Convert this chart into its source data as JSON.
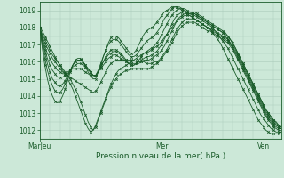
{
  "title": "",
  "xlabel": "Pression niveau de la mer( hPa )",
  "ylabel": "",
  "xlim": [
    0,
    95
  ],
  "ylim": [
    1011.5,
    1019.5
  ],
  "yticks": [
    1012,
    1013,
    1014,
    1015,
    1016,
    1017,
    1018,
    1019
  ],
  "xtick_positions": [
    0,
    48,
    88
  ],
  "xtick_labels": [
    "MarJeu",
    "Mer",
    "Ven"
  ],
  "bg_color": "#cce8d8",
  "grid_color": "#aacaba",
  "line_color": "#1a5c2a",
  "series": [
    [
      1018.0,
      1017.8,
      1017.5,
      1017.2,
      1016.9,
      1016.6,
      1016.3,
      1016.0,
      1015.8,
      1015.5,
      1015.3,
      1015.0,
      1014.7,
      1014.4,
      1014.0,
      1013.6,
      1013.2,
      1012.8,
      1012.4,
      1012.1,
      1011.9,
      1012.0,
      1012.3,
      1012.7,
      1013.1,
      1013.5,
      1013.9,
      1014.3,
      1014.7,
      1015.0,
      1015.3,
      1015.5,
      1015.6,
      1015.7,
      1015.8,
      1015.9,
      1016.0,
      1016.1,
      1016.2,
      1016.3,
      1016.4,
      1016.5,
      1016.5,
      1016.6,
      1016.7,
      1016.8,
      1016.9,
      1017.0,
      1017.2,
      1017.4,
      1017.6,
      1017.8,
      1018.0,
      1018.2,
      1018.4,
      1018.5,
      1018.6,
      1018.7,
      1018.7,
      1018.7,
      1018.6,
      1018.5,
      1018.4,
      1018.3,
      1018.2,
      1018.1,
      1018.0,
      1017.9,
      1017.8,
      1017.7,
      1017.6,
      1017.5,
      1017.4,
      1017.3,
      1017.2,
      1017.0,
      1016.8,
      1016.6,
      1016.3,
      1016.0,
      1015.7,
      1015.4,
      1015.1,
      1014.8,
      1014.5,
      1014.2,
      1013.9,
      1013.6,
      1013.3,
      1013.0,
      1012.8,
      1012.6,
      1012.4,
      1012.3,
      1012.2,
      1012.1
    ],
    [
      1018.0,
      1017.6,
      1017.3,
      1017.0,
      1016.7,
      1016.4,
      1016.2,
      1016.0,
      1015.8,
      1015.6,
      1015.4,
      1015.2,
      1015.0,
      1014.7,
      1014.4,
      1014.1,
      1013.7,
      1013.3,
      1012.9,
      1012.5,
      1012.2,
      1012.0,
      1012.2,
      1012.6,
      1013.0,
      1013.4,
      1013.8,
      1014.2,
      1014.5,
      1014.8,
      1015.0,
      1015.2,
      1015.3,
      1015.4,
      1015.5,
      1015.5,
      1015.6,
      1015.6,
      1015.6,
      1015.6,
      1015.6,
      1015.6,
      1015.6,
      1015.6,
      1015.7,
      1015.8,
      1015.9,
      1016.0,
      1016.2,
      1016.4,
      1016.6,
      1016.8,
      1017.1,
      1017.4,
      1017.7,
      1017.9,
      1018.1,
      1018.2,
      1018.3,
      1018.3,
      1018.3,
      1018.3,
      1018.2,
      1018.1,
      1018.0,
      1017.9,
      1017.8,
      1017.8,
      1017.7,
      1017.6,
      1017.5,
      1017.4,
      1017.3,
      1017.2,
      1017.1,
      1016.9,
      1016.7,
      1016.4,
      1016.1,
      1015.8,
      1015.5,
      1015.2,
      1014.9,
      1014.6,
      1014.3,
      1014.0,
      1013.7,
      1013.4,
      1013.1,
      1012.8,
      1012.6,
      1012.4,
      1012.2,
      1012.1,
      1012.0,
      1012.0
    ],
    [
      1018.0,
      1017.5,
      1017.1,
      1016.8,
      1016.5,
      1016.2,
      1016.0,
      1015.8,
      1015.6,
      1015.4,
      1015.3,
      1015.2,
      1015.1,
      1015.0,
      1014.9,
      1014.8,
      1014.7,
      1014.6,
      1014.5,
      1014.4,
      1014.3,
      1014.2,
      1014.3,
      1014.5,
      1014.8,
      1015.1,
      1015.4,
      1015.7,
      1015.9,
      1016.0,
      1016.1,
      1016.1,
      1016.1,
      1016.1,
      1016.1,
      1016.1,
      1016.1,
      1016.1,
      1016.0,
      1016.0,
      1016.0,
      1016.0,
      1015.9,
      1015.9,
      1015.9,
      1016.0,
      1016.0,
      1016.1,
      1016.3,
      1016.5,
      1016.7,
      1017.0,
      1017.3,
      1017.6,
      1017.9,
      1018.1,
      1018.3,
      1018.4,
      1018.5,
      1018.5,
      1018.5,
      1018.5,
      1018.4,
      1018.3,
      1018.2,
      1018.1,
      1018.0,
      1017.9,
      1017.9,
      1017.8,
      1017.7,
      1017.6,
      1017.5,
      1017.4,
      1017.3,
      1017.1,
      1016.9,
      1016.7,
      1016.4,
      1016.1,
      1015.8,
      1015.5,
      1015.2,
      1014.9,
      1014.6,
      1014.3,
      1014.0,
      1013.7,
      1013.4,
      1013.1,
      1012.9,
      1012.7,
      1012.5,
      1012.3,
      1012.2,
      1012.1
    ],
    [
      1018.0,
      1017.4,
      1016.9,
      1016.5,
      1016.2,
      1015.9,
      1015.7,
      1015.5,
      1015.4,
      1015.3,
      1015.3,
      1015.4,
      1015.5,
      1015.6,
      1015.6,
      1015.6,
      1015.6,
      1015.5,
      1015.4,
      1015.3,
      1015.2,
      1015.1,
      1015.2,
      1015.4,
      1015.6,
      1015.8,
      1016.0,
      1016.2,
      1016.3,
      1016.4,
      1016.4,
      1016.3,
      1016.2,
      1016.1,
      1016.0,
      1015.9,
      1015.9,
      1015.9,
      1015.9,
      1015.9,
      1016.0,
      1016.1,
      1016.1,
      1016.1,
      1016.2,
      1016.3,
      1016.4,
      1016.5,
      1016.7,
      1016.9,
      1017.2,
      1017.5,
      1017.8,
      1018.1,
      1018.4,
      1018.6,
      1018.7,
      1018.8,
      1018.8,
      1018.8,
      1018.8,
      1018.8,
      1018.7,
      1018.6,
      1018.5,
      1018.4,
      1018.3,
      1018.2,
      1018.1,
      1018.0,
      1017.9,
      1017.8,
      1017.7,
      1017.6,
      1017.5,
      1017.3,
      1017.0,
      1016.8,
      1016.5,
      1016.2,
      1015.9,
      1015.6,
      1015.3,
      1015.0,
      1014.7,
      1014.4,
      1014.1,
      1013.8,
      1013.5,
      1013.2,
      1013.0,
      1012.8,
      1012.6,
      1012.5,
      1012.3,
      1012.2
    ],
    [
      1018.0,
      1017.3,
      1016.7,
      1016.2,
      1015.8,
      1015.5,
      1015.3,
      1015.1,
      1015.1,
      1015.1,
      1015.2,
      1015.3,
      1015.5,
      1015.7,
      1015.8,
      1015.9,
      1015.9,
      1015.8,
      1015.7,
      1015.5,
      1015.4,
      1015.2,
      1015.2,
      1015.4,
      1015.7,
      1016.0,
      1016.2,
      1016.4,
      1016.5,
      1016.6,
      1016.6,
      1016.5,
      1016.4,
      1016.2,
      1016.0,
      1015.9,
      1015.8,
      1015.8,
      1015.9,
      1016.0,
      1016.1,
      1016.2,
      1016.3,
      1016.3,
      1016.4,
      1016.5,
      1016.6,
      1016.8,
      1017.0,
      1017.3,
      1017.6,
      1017.9,
      1018.2,
      1018.5,
      1018.7,
      1018.8,
      1018.9,
      1018.9,
      1018.9,
      1018.9,
      1018.9,
      1018.9,
      1018.8,
      1018.7,
      1018.6,
      1018.5,
      1018.4,
      1018.3,
      1018.2,
      1018.1,
      1018.0,
      1017.9,
      1017.8,
      1017.7,
      1017.5,
      1017.3,
      1017.1,
      1016.8,
      1016.5,
      1016.2,
      1015.9,
      1015.6,
      1015.3,
      1015.0,
      1014.7,
      1014.4,
      1014.1,
      1013.8,
      1013.5,
      1013.2,
      1013.0,
      1012.8,
      1012.6,
      1012.4,
      1012.3,
      1012.2
    ],
    [
      1018.0,
      1017.2,
      1016.5,
      1015.9,
      1015.4,
      1015.0,
      1014.8,
      1014.6,
      1014.6,
      1014.7,
      1014.9,
      1015.2,
      1015.5,
      1015.8,
      1016.0,
      1016.1,
      1016.1,
      1016.0,
      1015.8,
      1015.6,
      1015.4,
      1015.2,
      1015.2,
      1015.4,
      1015.7,
      1016.0,
      1016.3,
      1016.5,
      1016.7,
      1016.7,
      1016.7,
      1016.6,
      1016.5,
      1016.3,
      1016.1,
      1015.9,
      1015.8,
      1015.8,
      1015.9,
      1016.1,
      1016.3,
      1016.5,
      1016.6,
      1016.7,
      1016.8,
      1016.9,
      1017.1,
      1017.3,
      1017.6,
      1017.9,
      1018.2,
      1018.5,
      1018.7,
      1018.9,
      1019.0,
      1019.1,
      1019.1,
      1019.1,
      1019.0,
      1018.9,
      1018.8,
      1018.8,
      1018.7,
      1018.6,
      1018.5,
      1018.4,
      1018.3,
      1018.2,
      1018.1,
      1018.0,
      1017.9,
      1017.8,
      1017.7,
      1017.5,
      1017.3,
      1017.1,
      1016.8,
      1016.5,
      1016.2,
      1015.9,
      1015.6,
      1015.3,
      1015.0,
      1014.7,
      1014.4,
      1014.1,
      1013.8,
      1013.5,
      1013.2,
      1012.9,
      1012.7,
      1012.5,
      1012.3,
      1012.2,
      1012.1,
      1012.1
    ],
    [
      1018.0,
      1017.0,
      1016.2,
      1015.5,
      1015.0,
      1014.6,
      1014.3,
      1014.2,
      1014.2,
      1014.4,
      1014.7,
      1015.1,
      1015.5,
      1015.8,
      1016.0,
      1016.1,
      1016.1,
      1016.0,
      1015.8,
      1015.6,
      1015.4,
      1015.2,
      1015.2,
      1015.5,
      1015.9,
      1016.3,
      1016.7,
      1017.0,
      1017.2,
      1017.3,
      1017.3,
      1017.2,
      1017.0,
      1016.8,
      1016.6,
      1016.4,
      1016.3,
      1016.3,
      1016.4,
      1016.6,
      1016.8,
      1017.0,
      1017.2,
      1017.3,
      1017.4,
      1017.5,
      1017.7,
      1017.9,
      1018.2,
      1018.5,
      1018.7,
      1018.9,
      1019.1,
      1019.2,
      1019.2,
      1019.2,
      1019.1,
      1019.0,
      1018.9,
      1018.8,
      1018.7,
      1018.7,
      1018.6,
      1018.5,
      1018.4,
      1018.3,
      1018.2,
      1018.1,
      1018.0,
      1017.8,
      1017.6,
      1017.4,
      1017.2,
      1017.0,
      1016.8,
      1016.5,
      1016.2,
      1015.9,
      1015.6,
      1015.3,
      1015.0,
      1014.7,
      1014.4,
      1014.1,
      1013.8,
      1013.5,
      1013.2,
      1012.9,
      1012.7,
      1012.5,
      1012.3,
      1012.1,
      1012.0,
      1011.9,
      1011.9,
      1011.9
    ],
    [
      1018.0,
      1016.8,
      1015.8,
      1015.0,
      1014.4,
      1014.0,
      1013.7,
      1013.6,
      1013.7,
      1014.0,
      1014.4,
      1014.9,
      1015.4,
      1015.8,
      1016.1,
      1016.2,
      1016.2,
      1016.0,
      1015.7,
      1015.4,
      1015.2,
      1015.0,
      1015.0,
      1015.4,
      1015.8,
      1016.3,
      1016.7,
      1017.1,
      1017.4,
      1017.5,
      1017.5,
      1017.4,
      1017.2,
      1017.0,
      1016.8,
      1016.6,
      1016.5,
      1016.5,
      1016.7,
      1017.0,
      1017.3,
      1017.6,
      1017.8,
      1017.9,
      1018.0,
      1018.1,
      1018.3,
      1018.5,
      1018.7,
      1018.9,
      1019.0,
      1019.1,
      1019.2,
      1019.2,
      1019.2,
      1019.1,
      1019.0,
      1018.9,
      1018.8,
      1018.7,
      1018.6,
      1018.5,
      1018.4,
      1018.3,
      1018.2,
      1018.1,
      1018.0,
      1017.9,
      1017.7,
      1017.5,
      1017.3,
      1017.1,
      1016.8,
      1016.5,
      1016.2,
      1015.9,
      1015.6,
      1015.3,
      1015.0,
      1014.7,
      1014.4,
      1014.1,
      1013.8,
      1013.5,
      1013.2,
      1012.9,
      1012.6,
      1012.4,
      1012.2,
      1012.0,
      1011.9,
      1011.8,
      1011.8,
      1011.8,
      1011.8,
      1011.9
    ]
  ]
}
